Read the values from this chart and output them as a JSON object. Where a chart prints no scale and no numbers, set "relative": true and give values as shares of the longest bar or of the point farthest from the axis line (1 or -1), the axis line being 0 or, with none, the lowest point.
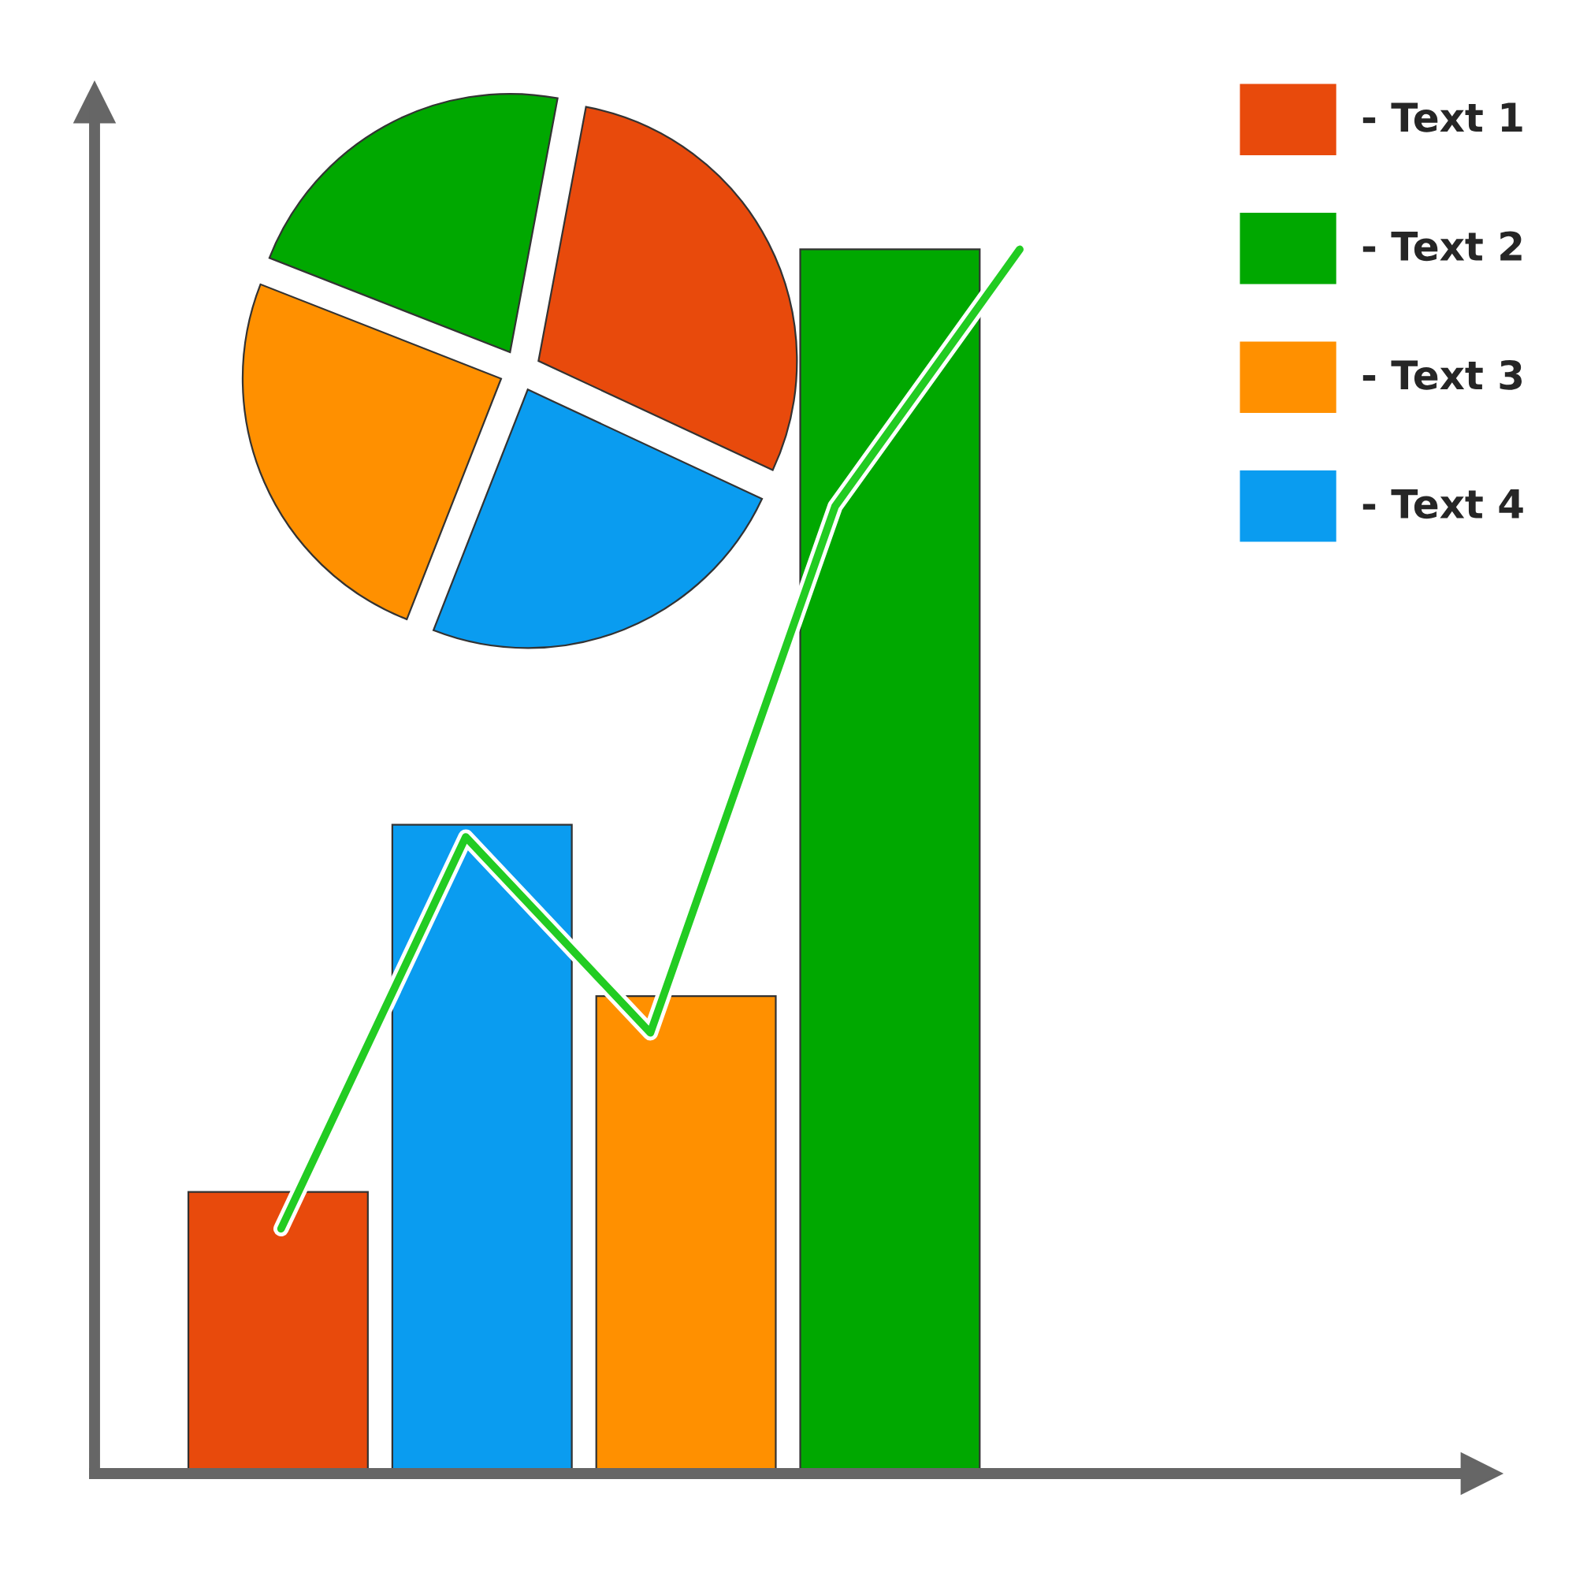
{
  "chart_data": [
    {
      "type": "bar",
      "relative": true,
      "categories": [
        null,
        null,
        null,
        null
      ],
      "values": [
        0.23,
        0.53,
        0.39,
        1.0
      ],
      "colors": [
        "#e84a0c",
        "#0a9cf0",
        "#ff9000",
        "#00a800"
      ]
    },
    {
      "type": "line",
      "relative": true,
      "categories": [
        null,
        null,
        null,
        null,
        null
      ],
      "values": [
        0.2,
        0.52,
        0.36,
        0.79,
        1.0
      ],
      "color": "#22cc22"
    },
    {
      "type": "pie",
      "categories": [
        "- Text 1",
        "- Text 2",
        "- Text 3",
        "- Text 4"
      ],
      "values": [
        29,
        22,
        25,
        24
      ],
      "colors": [
        "#e84a0c",
        "#00a800",
        "#ff9000",
        "#0a9cf0"
      ],
      "legend": "top right"
    }
  ]
}
